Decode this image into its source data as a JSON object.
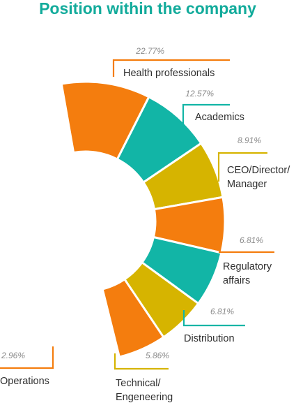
{
  "chart_data": {
    "type": "pie",
    "title": "Position within the company",
    "categories": [
      "Health professionals",
      "Academics",
      "CEO/Director/Manager",
      "Regulatory affairs",
      "Distribution",
      "Technical/Engeneering",
      "Operations"
    ],
    "label_lines": [
      [
        "Health professionals"
      ],
      [
        "Academics"
      ],
      [
        "CEO/Director/",
        "Manager"
      ],
      [
        "Regulatory",
        "affairs"
      ],
      [
        "Distribution"
      ],
      [
        "Technical/",
        "Engeneering"
      ],
      [
        "Operations"
      ]
    ],
    "value_labels": [
      "22.77%",
      "12.57%",
      "8.91%",
      "6.81%",
      "6.81%",
      "5.86%",
      "2.96%"
    ],
    "values": [
      22.77,
      12.57,
      8.91,
      6.81,
      6.81,
      5.86,
      2.96
    ],
    "colors": [
      "#f47d0e",
      "#12b5a6",
      "#d6b400",
      "#f47d0e",
      "#12b5a6",
      "#d6b400",
      "#f47d0e"
    ],
    "title_color": "#12ab9b"
  }
}
